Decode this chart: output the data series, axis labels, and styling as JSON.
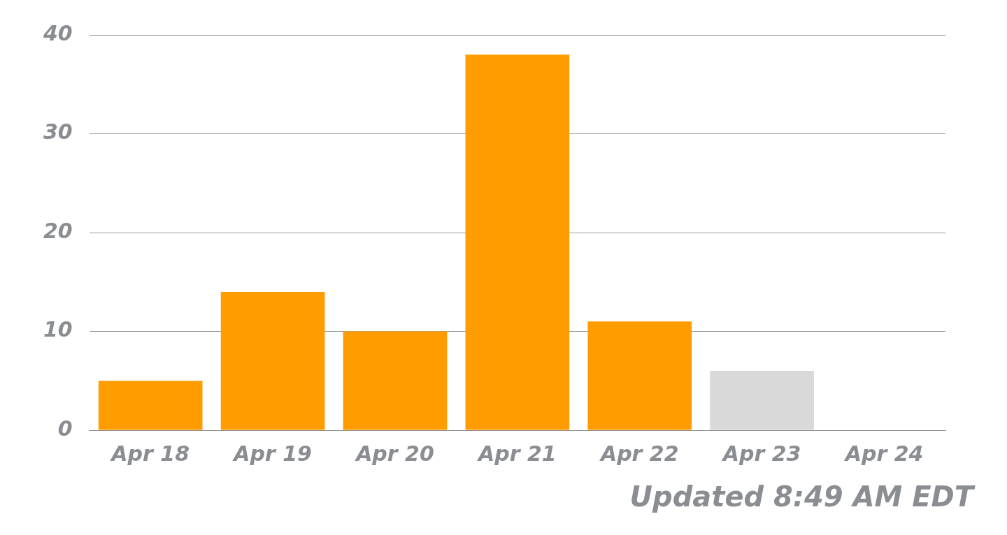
{
  "chart_data": {
    "type": "bar",
    "categories": [
      "Apr 18",
      "Apr 19",
      "Apr 20",
      "Apr 21",
      "Apr 22",
      "Apr 23",
      "Apr 24"
    ],
    "values": [
      5,
      14,
      10,
      38,
      11,
      6,
      0
    ],
    "colors": [
      "#ff9c00",
      "#ff9c00",
      "#ff9c00",
      "#ff9c00",
      "#ff9c00",
      "#d9d9d9",
      "#d9d9d9"
    ],
    "ylim": [
      0,
      40
    ],
    "yticks": [
      0,
      10,
      20,
      30,
      40
    ],
    "grid": "y",
    "legend": false,
    "annotations": [
      "Updated 8:49 AM EDT"
    ]
  }
}
